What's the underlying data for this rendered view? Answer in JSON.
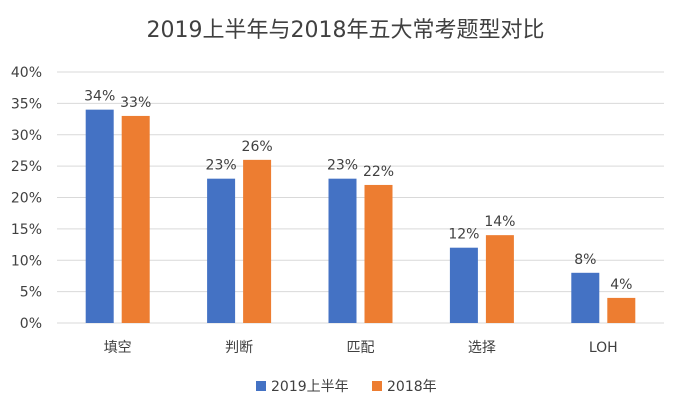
{
  "chart_data": {
    "type": "bar",
    "title": "2019上半年与2018年五大常考题型对比",
    "categories": [
      "填空",
      "判断",
      "匹配",
      "选择",
      "LOH"
    ],
    "series": [
      {
        "name": "2019上半年",
        "values": [
          34,
          23,
          23,
          12,
          8
        ],
        "color": "#4472C4"
      },
      {
        "name": "2018年",
        "values": [
          33,
          26,
          22,
          14,
          4
        ],
        "color": "#ED7D31"
      }
    ],
    "ylim": [
      0,
      40
    ],
    "yticks": [
      "0%",
      "5%",
      "10%",
      "15%",
      "20%",
      "25%",
      "30%",
      "35%",
      "40%"
    ],
    "data_labels": [
      [
        "34%",
        "23%",
        "23%",
        "12%",
        "8%"
      ],
      [
        "33%",
        "26%",
        "22%",
        "14%",
        "4%"
      ]
    ],
    "grid": true,
    "legend_position": "bottom"
  }
}
